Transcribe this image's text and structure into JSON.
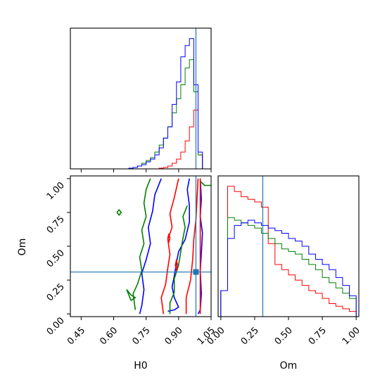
{
  "chart_data": {
    "type": "corner",
    "parameters": [
      "H0",
      "Om"
    ],
    "truths": {
      "H0": 0.98,
      "Om": 0.31
    },
    "colors": {
      "series_1": "#ff0000",
      "series_2": "#008000",
      "series_3": "#0000ff",
      "truth": "#1f77b4"
    },
    "axes": {
      "H0": {
        "label": "H0",
        "range": [
          0.4,
          1.05
        ],
        "ticks": [
          "0.45",
          "0.60",
          "0.75",
          "0.90",
          "1.05"
        ],
        "tick_values": [
          0.45,
          0.6,
          0.75,
          0.9,
          1.05
        ]
      },
      "Om": {
        "label": "Om",
        "range": [
          -0.02,
          1.02
        ],
        "ticks": [
          "0.00",
          "0.25",
          "0.50",
          "0.75",
          "1.00"
        ],
        "tick_values": [
          0.0,
          0.25,
          0.5,
          0.75,
          1.0
        ]
      }
    },
    "hist_H0": {
      "bin_edges": [
        0.65,
        0.67,
        0.69,
        0.71,
        0.73,
        0.75,
        0.77,
        0.79,
        0.81,
        0.83,
        0.85,
        0.87,
        0.89,
        0.91,
        0.93,
        0.95,
        0.97,
        0.99,
        1.01
      ],
      "series": [
        {
          "color": "red",
          "values": [
            0,
            0,
            0,
            0,
            0,
            0,
            0,
            0,
            0.5,
            1,
            2,
            4,
            7,
            12,
            20,
            30,
            42,
            10
          ]
        },
        {
          "color": "green",
          "values": [
            0,
            0.5,
            1,
            2,
            4,
            6,
            8,
            12,
            17,
            22,
            30,
            40,
            50,
            60,
            72,
            78,
            55,
            10
          ]
        },
        {
          "color": "blue",
          "values": [
            0,
            0.5,
            1,
            2,
            3,
            5,
            7,
            10,
            15,
            22,
            30,
            46,
            62,
            80,
            88,
            93,
            60,
            12
          ]
        }
      ]
    },
    "hist_Om": {
      "bin_edges": [
        0.0,
        0.05,
        0.1,
        0.15,
        0.2,
        0.25,
        0.3,
        0.35,
        0.4,
        0.45,
        0.5,
        0.55,
        0.6,
        0.65,
        0.7,
        0.75,
        0.8,
        0.85,
        0.9,
        0.95,
        1.0
      ],
      "series": [
        {
          "color": "red",
          "values": [
            10,
            50,
            48,
            46,
            45,
            44,
            42,
            28,
            20,
            18,
            16,
            14,
            12,
            10,
            9,
            7,
            5,
            4,
            3,
            2
          ]
        },
        {
          "color": "green",
          "values": [
            10,
            38,
            37,
            36,
            35,
            34,
            32,
            30,
            28,
            26,
            25,
            24,
            22,
            20,
            18,
            15,
            13,
            11,
            9,
            7
          ]
        },
        {
          "color": "blue",
          "values": [
            10,
            30,
            35,
            36,
            37,
            36,
            35,
            34,
            33,
            32,
            30,
            29,
            27,
            24,
            22,
            20,
            18,
            15,
            12,
            8
          ]
        }
      ]
    }
  }
}
